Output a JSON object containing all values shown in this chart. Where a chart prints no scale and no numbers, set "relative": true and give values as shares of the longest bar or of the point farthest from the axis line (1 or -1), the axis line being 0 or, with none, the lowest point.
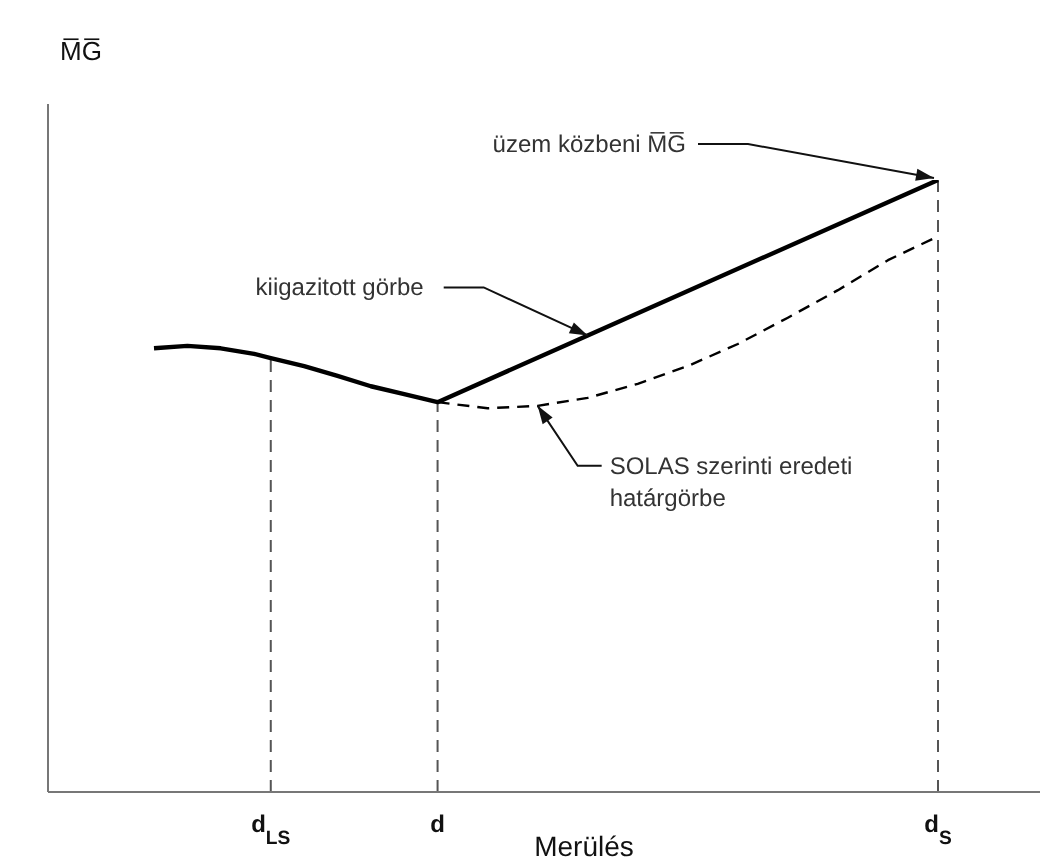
{
  "chart_data": {
    "type": "line",
    "relative": true,
    "ylabel": "M̅G̅",
    "xlabel": "Merülés",
    "marker": "none",
    "categories": [
      null,
      null,
      null,
      null,
      null,
      null,
      null,
      "d$_{LS}$",
      null,
      null,
      null,
      null,
      null,
      null,
      null,
      null,
      null,
      "d",
      null,
      null,
      null,
      null,
      null,
      null,
      null,
      null,
      null,
      null,
      null,
      null,
      null,
      null,
      null,
      null,
      null,
      null,
      null,
      null,
      null,
      null,
      null,
      null,
      null,
      null,
      null,
      null,
      null,
      "d$_{S}$"
    ],
    "series": [
      {
        "name": "kiigazitott görbe",
        "color": "#000000",
        "line_style": "solid",
        "values": [
          0.725,
          null,
          0.729,
          null,
          0.725,
          null,
          0.716,
          0.709,
          null,
          0.696,
          null,
          0.68,
          null,
          0.663,
          null,
          0.65,
          null,
          0.637,
          null,
          null,
          null,
          null,
          null,
          null,
          null,
          null,
          0.746,
          null,
          null,
          null,
          null,
          null,
          null,
          null,
          null,
          null,
          null,
          null,
          null,
          null,
          null,
          null,
          null,
          null,
          null,
          null,
          null,
          1
        ]
      },
      {
        "name": "SOLAS szerinti eredeti határgörbe",
        "color": "#000000",
        "line_style": "dashed",
        "values": [
          null,
          null,
          null,
          null,
          null,
          null,
          null,
          null,
          null,
          null,
          null,
          null,
          null,
          null,
          null,
          null,
          null,
          0.637,
          null,
          null,
          0.627,
          null,
          null,
          0.631,
          null,
          null,
          0.644,
          null,
          null,
          0.667,
          null,
          null,
          0.696,
          null,
          null,
          0.732,
          null,
          null,
          0.775,
          null,
          null,
          0.82,
          null,
          null,
          0.869,
          null,
          null,
          0.908
        ]
      }
    ],
    "ref_lines": [
      {
        "axis": "x",
        "value": "d$_{LS}$",
        "line_style": "dashed",
        "color": "#555555"
      },
      {
        "axis": "x",
        "value": "d",
        "line_style": "dashed",
        "color": "#555555"
      },
      {
        "axis": "x",
        "value": "d$_{S}$",
        "line_style": "dashed",
        "color": "#555555"
      }
    ],
    "annotations": [
      {
        "text": "üzem közbeni M̅G̅",
        "x": "d$_{S}$",
        "y": 1
      }
    ]
  }
}
